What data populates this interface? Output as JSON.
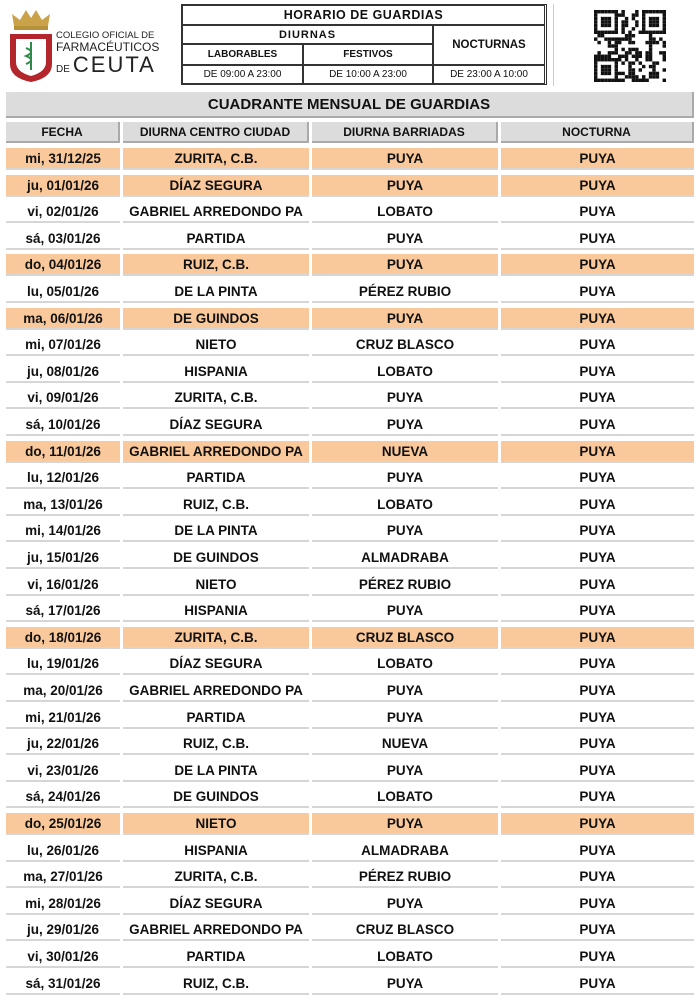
{
  "logo": {
    "line1": "COLEGIO OFICIAL DE",
    "line2": "FARMACÉUTICOS",
    "line3_prefix": "DE",
    "line3": "CEUTA"
  },
  "schedule": {
    "title": "HORARIO DE GUARDIAS",
    "diurnas": "DIURNAS",
    "nocturnas": "NOCTURNAS",
    "laborables": "LABORABLES",
    "festivos": "FESTIVOS",
    "laborables_hours": "DE 09:00 A 23:00",
    "festivos_hours": "DE 10:00 A 23:00",
    "nocturnas_hours": "DE 23:00 A 10:00"
  },
  "colors": {
    "highlight": "#f9c89b",
    "header_bg": "#dcdcdc"
  },
  "table": {
    "title": "CUADRANTE MENSUAL DE GUARDIAS",
    "headers": [
      "FECHA",
      "DIURNA CENTRO CIUDAD",
      "DIURNA BARRIADAS",
      "NOCTURNA"
    ],
    "rows": [
      {
        "fecha": "mi, 31/12/25",
        "centro": "ZURITA, C.B.",
        "barriadas": "PUYA",
        "nocturna": "PUYA",
        "highlighted": true
      },
      {
        "fecha": "ju, 01/01/26",
        "centro": "DÍAZ SEGURA",
        "barriadas": "PUYA",
        "nocturna": "PUYA",
        "highlighted": true
      },
      {
        "fecha": "vi, 02/01/26",
        "centro": "GABRIEL ARREDONDO PA",
        "barriadas": "LOBATO",
        "nocturna": "PUYA",
        "highlighted": false
      },
      {
        "fecha": "sá, 03/01/26",
        "centro": "PARTIDA",
        "barriadas": "PUYA",
        "nocturna": "PUYA",
        "highlighted": false
      },
      {
        "fecha": "do, 04/01/26",
        "centro": "RUIZ, C.B.",
        "barriadas": "PUYA",
        "nocturna": "PUYA",
        "highlighted": true
      },
      {
        "fecha": "lu, 05/01/26",
        "centro": "DE LA PINTA",
        "barriadas": "PÉREZ RUBIO",
        "nocturna": "PUYA",
        "highlighted": false
      },
      {
        "fecha": "ma, 06/01/26",
        "centro": "DE GUINDOS",
        "barriadas": "PUYA",
        "nocturna": "PUYA",
        "highlighted": true
      },
      {
        "fecha": "mi, 07/01/26",
        "centro": "NIETO",
        "barriadas": "CRUZ BLASCO",
        "nocturna": "PUYA",
        "highlighted": false
      },
      {
        "fecha": "ju, 08/01/26",
        "centro": "HISPANIA",
        "barriadas": "LOBATO",
        "nocturna": "PUYA",
        "highlighted": false
      },
      {
        "fecha": "vi, 09/01/26",
        "centro": "ZURITA, C.B.",
        "barriadas": "PUYA",
        "nocturna": "PUYA",
        "highlighted": false
      },
      {
        "fecha": "sá, 10/01/26",
        "centro": "DÍAZ SEGURA",
        "barriadas": "PUYA",
        "nocturna": "PUYA",
        "highlighted": false
      },
      {
        "fecha": "do, 11/01/26",
        "centro": "GABRIEL ARREDONDO PA",
        "barriadas": "NUEVA",
        "nocturna": "PUYA",
        "highlighted": true
      },
      {
        "fecha": "lu, 12/01/26",
        "centro": "PARTIDA",
        "barriadas": "PUYA",
        "nocturna": "PUYA",
        "highlighted": false
      },
      {
        "fecha": "ma, 13/01/26",
        "centro": "RUIZ, C.B.",
        "barriadas": "LOBATO",
        "nocturna": "PUYA",
        "highlighted": false
      },
      {
        "fecha": "mi, 14/01/26",
        "centro": "DE LA PINTA",
        "barriadas": "PUYA",
        "nocturna": "PUYA",
        "highlighted": false
      },
      {
        "fecha": "ju, 15/01/26",
        "centro": "DE GUINDOS",
        "barriadas": "ALMADRABA",
        "nocturna": "PUYA",
        "highlighted": false
      },
      {
        "fecha": "vi, 16/01/26",
        "centro": "NIETO",
        "barriadas": "PÉREZ RUBIO",
        "nocturna": "PUYA",
        "highlighted": false
      },
      {
        "fecha": "sá, 17/01/26",
        "centro": "HISPANIA",
        "barriadas": "PUYA",
        "nocturna": "PUYA",
        "highlighted": false
      },
      {
        "fecha": "do, 18/01/26",
        "centro": "ZURITA, C.B.",
        "barriadas": "CRUZ BLASCO",
        "nocturna": "PUYA",
        "highlighted": true
      },
      {
        "fecha": "lu, 19/01/26",
        "centro": "DÍAZ SEGURA",
        "barriadas": "LOBATO",
        "nocturna": "PUYA",
        "highlighted": false
      },
      {
        "fecha": "ma, 20/01/26",
        "centro": "GABRIEL ARREDONDO PA",
        "barriadas": "PUYA",
        "nocturna": "PUYA",
        "highlighted": false
      },
      {
        "fecha": "mi, 21/01/26",
        "centro": "PARTIDA",
        "barriadas": "PUYA",
        "nocturna": "PUYA",
        "highlighted": false
      },
      {
        "fecha": "ju, 22/01/26",
        "centro": "RUIZ, C.B.",
        "barriadas": "NUEVA",
        "nocturna": "PUYA",
        "highlighted": false
      },
      {
        "fecha": "vi, 23/01/26",
        "centro": "DE LA PINTA",
        "barriadas": "PUYA",
        "nocturna": "PUYA",
        "highlighted": false
      },
      {
        "fecha": "sá, 24/01/26",
        "centro": "DE GUINDOS",
        "barriadas": "LOBATO",
        "nocturna": "PUYA",
        "highlighted": false
      },
      {
        "fecha": "do, 25/01/26",
        "centro": "NIETO",
        "barriadas": "PUYA",
        "nocturna": "PUYA",
        "highlighted": true
      },
      {
        "fecha": "lu, 26/01/26",
        "centro": "HISPANIA",
        "barriadas": "ALMADRABA",
        "nocturna": "PUYA",
        "highlighted": false
      },
      {
        "fecha": "ma, 27/01/26",
        "centro": "ZURITA, C.B.",
        "barriadas": "PÉREZ RUBIO",
        "nocturna": "PUYA",
        "highlighted": false
      },
      {
        "fecha": "mi, 28/01/26",
        "centro": "DÍAZ SEGURA",
        "barriadas": "PUYA",
        "nocturna": "PUYA",
        "highlighted": false
      },
      {
        "fecha": "ju, 29/01/26",
        "centro": "GABRIEL ARREDONDO PA",
        "barriadas": "CRUZ BLASCO",
        "nocturna": "PUYA",
        "highlighted": false
      },
      {
        "fecha": "vi, 30/01/26",
        "centro": "PARTIDA",
        "barriadas": "LOBATO",
        "nocturna": "PUYA",
        "highlighted": false
      },
      {
        "fecha": "sá, 31/01/26",
        "centro": "RUIZ, C.B.",
        "barriadas": "PUYA",
        "nocturna": "PUYA",
        "highlighted": false
      }
    ]
  }
}
